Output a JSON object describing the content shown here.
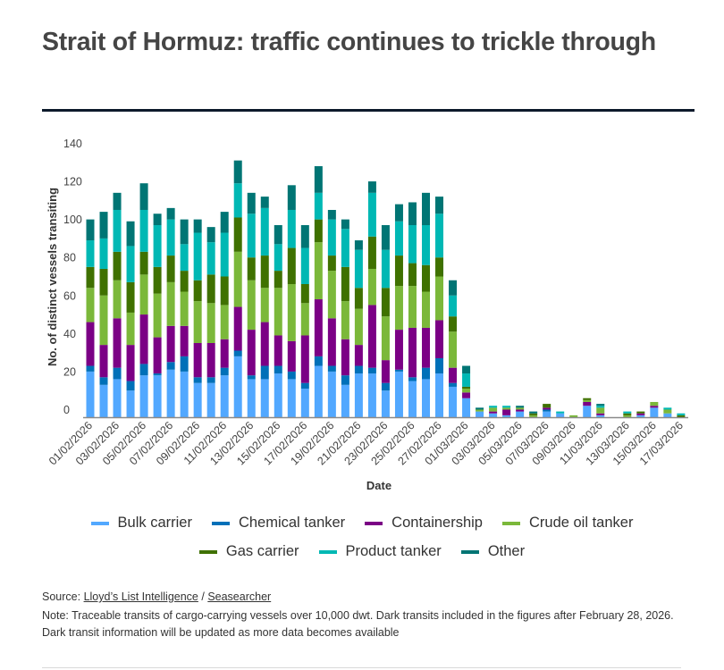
{
  "header": {
    "title": "Strait of Hormuz: traffic continues to trickle through"
  },
  "chart_data": {
    "type": "bar",
    "stacked": true,
    "title": "Strait of Hormuz: traffic continues to trickle through",
    "xlabel": "Date",
    "ylabel": "No. of distinct vessels transiting",
    "ylim": [
      0,
      140
    ],
    "yticks": [
      0,
      20,
      40,
      60,
      80,
      100,
      120,
      140
    ],
    "grid": false,
    "legend_position": "bottom",
    "categories": [
      "01/02/2026",
      "02/02/2026",
      "03/02/2026",
      "04/02/2026",
      "05/02/2026",
      "06/02/2026",
      "07/02/2026",
      "08/02/2026",
      "09/02/2026",
      "10/02/2026",
      "11/02/2026",
      "12/02/2026",
      "13/02/2026",
      "14/02/2026",
      "15/02/2026",
      "16/02/2026",
      "17/02/2026",
      "18/02/2026",
      "19/02/2026",
      "20/02/2026",
      "21/02/2026",
      "22/02/2026",
      "23/02/2026",
      "24/02/2026",
      "25/02/2026",
      "26/02/2026",
      "27/02/2026",
      "28/02/2026",
      "01/03/2026",
      "02/03/2026",
      "03/03/2026",
      "04/03/2026",
      "05/03/2026",
      "06/03/2026",
      "07/03/2026",
      "08/03/2026",
      "09/03/2026",
      "10/03/2026",
      "11/03/2026",
      "12/03/2026",
      "13/03/2026",
      "14/03/2026",
      "15/03/2026",
      "16/03/2026",
      "17/03/2026"
    ],
    "tick_labels": [
      "01/02/2026",
      "03/02/2026",
      "05/02/2026",
      "07/02/2026",
      "09/02/2026",
      "11/02/2026",
      "13/02/2026",
      "15/02/2026",
      "17/02/2026",
      "19/02/2026",
      "21/02/2026",
      "23/02/2026",
      "25/02/2026",
      "27/02/2026",
      "01/03/2026",
      "03/03/2026",
      "05/03/2026",
      "07/03/2026",
      "09/03/2026",
      "11/03/2026",
      "13/03/2026",
      "15/03/2026",
      "17/03/2026"
    ],
    "series": [
      {
        "name": "Bulk carrier",
        "color": "#52a8ff",
        "values": [
          24,
          17,
          20,
          14,
          22,
          22,
          25,
          24,
          18,
          18,
          22,
          32,
          20,
          20,
          23,
          20,
          15,
          27,
          24,
          17,
          23,
          23,
          14,
          24,
          19,
          20,
          23,
          16,
          10,
          3,
          2,
          1,
          3,
          0,
          3,
          2,
          0,
          6,
          1,
          0,
          0,
          1,
          5,
          2,
          0
        ]
      },
      {
        "name": "Chemical tanker",
        "color": "#0070b8",
        "values": [
          3,
          4,
          6,
          5,
          6,
          1,
          4,
          8,
          3,
          3,
          4,
          3,
          2,
          7,
          4,
          4,
          3,
          5,
          3,
          5,
          4,
          3,
          4,
          1,
          2,
          6,
          8,
          2,
          0,
          0,
          0,
          0,
          0,
          0,
          1,
          0,
          0,
          0,
          0,
          0,
          0,
          0,
          0,
          0,
          0
        ]
      },
      {
        "name": "Containership",
        "color": "#7b0085",
        "values": [
          23,
          17,
          26,
          19,
          26,
          19,
          19,
          16,
          18,
          18,
          15,
          23,
          24,
          23,
          16,
          16,
          25,
          30,
          25,
          19,
          11,
          33,
          12,
          21,
          26,
          21,
          20,
          8,
          3,
          0,
          1,
          3,
          1,
          0,
          1,
          0,
          0,
          2,
          1,
          0,
          0,
          1,
          1,
          0,
          0
        ]
      },
      {
        "name": "Crude oil tanker",
        "color": "#7bb83a",
        "values": [
          18,
          26,
          20,
          17,
          21,
          23,
          23,
          18,
          22,
          21,
          18,
          29,
          26,
          18,
          25,
          30,
          17,
          30,
          25,
          20,
          19,
          19,
          23,
          23,
          22,
          19,
          23,
          19,
          2,
          1,
          2,
          1,
          1,
          1,
          0,
          0,
          1,
          1,
          3,
          0,
          1,
          0,
          2,
          2,
          0
        ]
      },
      {
        "name": "Gas carrier",
        "color": "#3f7100",
        "values": [
          11,
          14,
          15,
          16,
          12,
          14,
          14,
          11,
          11,
          15,
          15,
          18,
          12,
          17,
          9,
          19,
          10,
          12,
          8,
          18,
          11,
          17,
          15,
          16,
          12,
          14,
          10,
          8,
          1,
          0,
          0,
          0,
          0,
          1,
          2,
          0,
          0,
          1,
          0,
          0,
          1,
          1,
          0,
          0,
          1
        ]
      },
      {
        "name": "Product tanker",
        "color": "#00b8b4",
        "values": [
          14,
          16,
          22,
          19,
          22,
          22,
          19,
          14,
          25,
          17,
          23,
          18,
          23,
          25,
          14,
          20,
          19,
          14,
          19,
          20,
          20,
          23,
          20,
          18,
          20,
          21,
          23,
          11,
          7,
          0,
          1,
          1,
          0,
          0,
          0,
          1,
          0,
          0,
          1,
          0,
          1,
          0,
          0,
          1,
          1
        ]
      },
      {
        "name": "Other",
        "color": "#007574",
        "values": [
          11,
          14,
          9,
          13,
          14,
          6,
          6,
          13,
          7,
          8,
          11,
          12,
          11,
          6,
          10,
          13,
          12,
          14,
          5,
          5,
          5,
          6,
          13,
          9,
          12,
          17,
          9,
          8,
          4,
          1,
          0,
          0,
          1,
          1,
          0,
          0,
          0,
          0,
          1,
          0,
          0,
          0,
          0,
          0,
          0
        ]
      }
    ]
  },
  "legend": {
    "items": [
      {
        "label": "Bulk carrier",
        "color": "#52a8ff"
      },
      {
        "label": "Chemical tanker",
        "color": "#0070b8"
      },
      {
        "label": "Containership",
        "color": "#7b0085"
      },
      {
        "label": "Crude oil tanker",
        "color": "#7bb83a"
      },
      {
        "label": "Gas carrier",
        "color": "#3f7100"
      },
      {
        "label": "Product tanker",
        "color": "#00b8b4"
      },
      {
        "label": "Other",
        "color": "#007574"
      }
    ]
  },
  "footer": {
    "source_prefix": "Source: ",
    "source_link_1": "Lloyd’s List Intelligence",
    "source_separator": " / ",
    "source_link_2": "Seasearcher",
    "note_line_1": "Note: Traceable transits of cargo-carrying vessels over 10,000 dwt. Dark transits included in the figures after February 28, 2026.",
    "note_line_2": "Dark transit information will be updated as more data becomes available"
  }
}
